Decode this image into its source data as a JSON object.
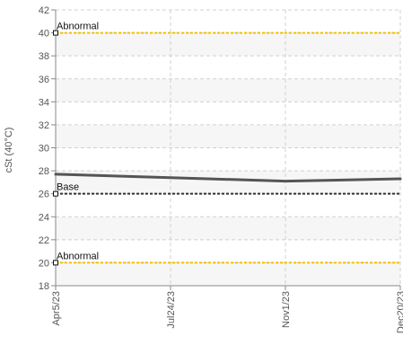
{
  "chart_data": {
    "type": "line",
    "ylabel": "cSt (40°C)",
    "xlabel": "",
    "ylim": [
      18,
      42
    ],
    "y_ticks": [
      18,
      20,
      22,
      24,
      26,
      28,
      30,
      32,
      34,
      36,
      38,
      40,
      42
    ],
    "x_categories": [
      "Apr5/23",
      "Jul24/23",
      "Nov1/23",
      "Dec20/23"
    ],
    "grid": true,
    "series": [
      {
        "x": [
          "Apr5/23",
          "Jul24/23",
          "Nov1/23",
          "Dec20/23"
        ],
        "values": [
          27.7,
          27.4,
          27.1,
          27.3
        ],
        "color": "#555555"
      }
    ],
    "reference_lines": [
      {
        "label": "Abnormal",
        "value": 40,
        "color": "#f2c200"
      },
      {
        "label": "Base",
        "value": 26,
        "color": "#333333"
      },
      {
        "label": "Abnormal",
        "value": 20,
        "color": "#f2c200"
      }
    ]
  }
}
